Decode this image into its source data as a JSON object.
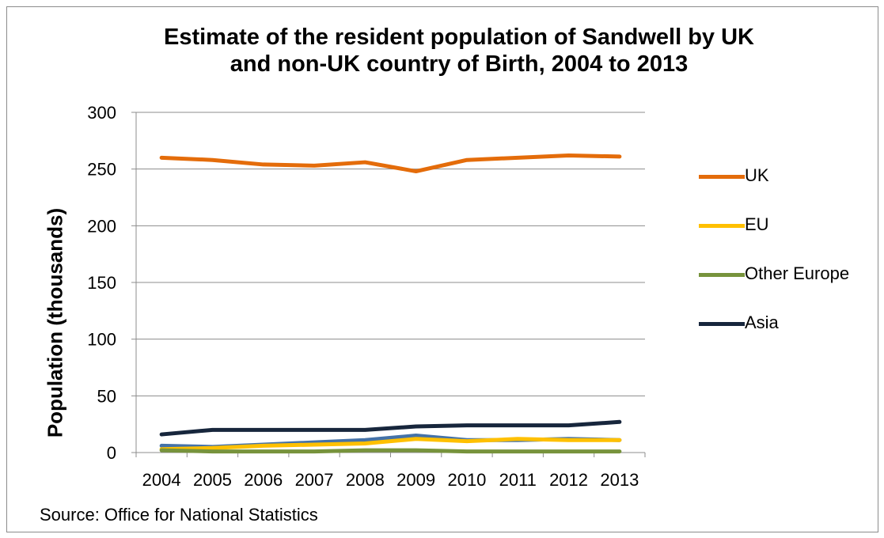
{
  "title_line1": "Estimate of the resident population of Sandwell by UK",
  "title_line2": "and non-UK country of Birth, 2004 to 2013",
  "source": "Source: Office for National Statistics",
  "chart_data": {
    "type": "line",
    "title": "Estimate of the resident population of Sandwell by UK and non-UK country of Birth, 2004 to 2013",
    "xlabel": "",
    "ylabel": "Population (thousands)",
    "ylim": [
      0,
      300
    ],
    "yticks": [
      0,
      50,
      100,
      150,
      200,
      250,
      300
    ],
    "grid": "horizontal",
    "legend_position": "right",
    "categories": [
      "2004",
      "2005",
      "2006",
      "2007",
      "2008",
      "2009",
      "2010",
      "2011",
      "2012",
      "2013"
    ],
    "series": [
      {
        "name": "UK",
        "color": "#E46C0A",
        "values": [
          260,
          258,
          254,
          253,
          256,
          248,
          258,
          260,
          262,
          261
        ]
      },
      {
        "name": "EU",
        "color": "#FFC000",
        "values": [
          3,
          4,
          6,
          7,
          8,
          12,
          10,
          12,
          11,
          11
        ],
        "in_legend": true
      },
      {
        "name": "Other Europe",
        "color": "#77933C",
        "values": [
          2,
          1,
          1,
          1,
          2,
          2,
          1,
          1,
          1,
          1
        ]
      },
      {
        "name": "Asia",
        "color": "#17263C",
        "values": [
          16,
          20,
          20,
          20,
          20,
          23,
          24,
          24,
          24,
          27
        ]
      },
      {
        "name": "",
        "color": "#4472A8",
        "values": [
          6,
          5,
          7,
          9,
          11,
          15,
          11,
          11,
          12,
          11
        ],
        "in_legend": false
      }
    ]
  }
}
